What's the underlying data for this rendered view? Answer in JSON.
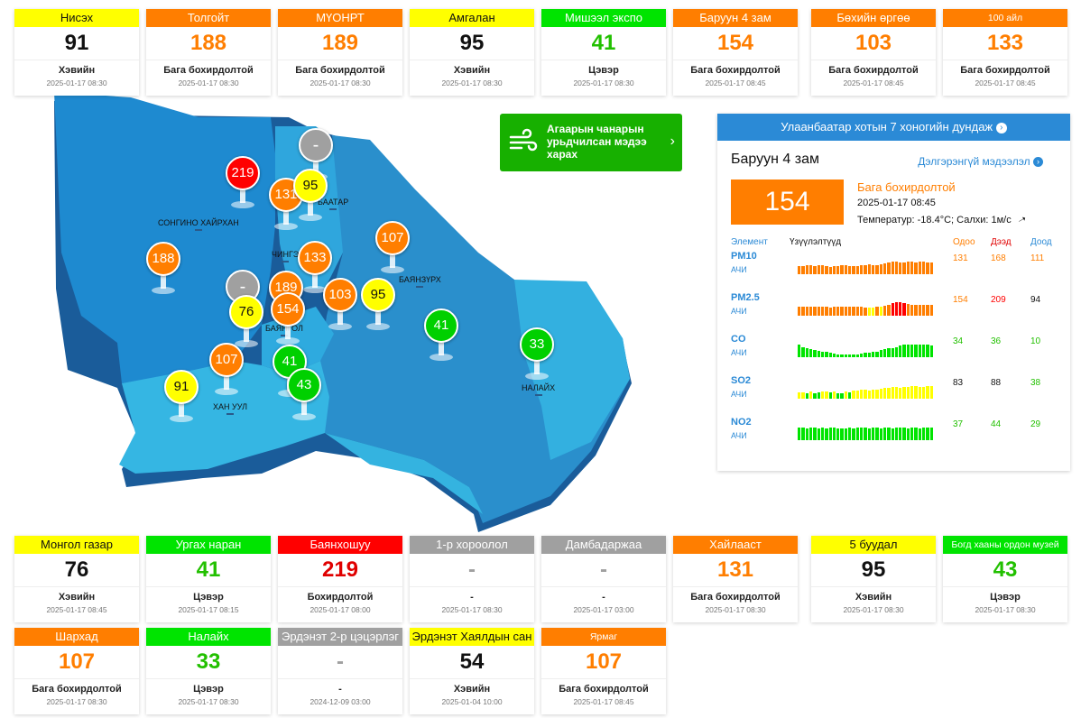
{
  "colors": {
    "good": "#00e400",
    "moderate": "#ffff00",
    "usg": "#ff7e00",
    "unhealthy": "#ff0000",
    "nodata": "#a0a0a0",
    "accent": "#2b8ad6"
  },
  "top_cards": [
    {
      "name": "Нисэх",
      "value": "91",
      "status": "Хэвийн",
      "time": "2025-01-17 08:30",
      "level": "yellow"
    },
    {
      "name": "Толгойт",
      "value": "188",
      "status": "Бага бохирдолтой",
      "time": "2025-01-17 08:30",
      "level": "orange"
    },
    {
      "name": "МҮОНРТ",
      "value": "189",
      "status": "Бага бохирдолтой",
      "time": "2025-01-17 08:30",
      "level": "orange"
    },
    {
      "name": "Амгалан",
      "value": "95",
      "status": "Хэвийн",
      "time": "2025-01-17 08:30",
      "level": "yellow"
    },
    {
      "name": "Мишээл экспо",
      "value": "41",
      "status": "Цэвэр",
      "time": "2025-01-17 08:30",
      "level": "green"
    },
    {
      "name": "Баруун 4 зам",
      "value": "154",
      "status": "Бага бохирдолтой",
      "time": "2025-01-17 08:45",
      "level": "orange"
    },
    {
      "name": "Бөхийн өргөө",
      "value": "103",
      "status": "Бага бохирдолтой",
      "time": "2025-01-17 08:45",
      "level": "orange"
    },
    {
      "name": "100 айл",
      "value": "133",
      "status": "Бага бохирдолтой",
      "time": "2025-01-17 08:45",
      "level": "orange",
      "small": true
    }
  ],
  "bottom_cards_row1": [
    {
      "name": "Монгол газар",
      "value": "76",
      "status": "Хэвийн",
      "time": "2025-01-17 08:45",
      "level": "yellow"
    },
    {
      "name": "Ургах наран",
      "value": "41",
      "status": "Цэвэр",
      "time": "2025-01-17 08:15",
      "level": "green"
    },
    {
      "name": "Баянхошуу",
      "value": "219",
      "status": "Бохирдолтой",
      "time": "2025-01-17 08:00",
      "level": "red"
    },
    {
      "name": "1-р хороолол",
      "value": "-",
      "status": "-",
      "time": "2025-01-17 08:30",
      "level": "gray"
    },
    {
      "name": "Дамбадаржаа",
      "value": "-",
      "status": "-",
      "time": "2025-01-17 03:00",
      "level": "gray"
    },
    {
      "name": "Хайлааст",
      "value": "131",
      "status": "Бага бохирдолтой",
      "time": "2025-01-17 08:30",
      "level": "orange"
    },
    {
      "name": "5 буудал",
      "value": "95",
      "status": "Хэвийн",
      "time": "2025-01-17 08:30",
      "level": "yellow"
    },
    {
      "name": "Богд хааны ордон музей",
      "value": "43",
      "status": "Цэвэр",
      "time": "2025-01-17 08:30",
      "level": "green",
      "small": true
    }
  ],
  "bottom_cards_row2": [
    {
      "name": "Шархад",
      "value": "107",
      "status": "Бага бохирдолтой",
      "time": "2025-01-17 08:30",
      "level": "orange"
    },
    {
      "name": "Налайх",
      "value": "33",
      "status": "Цэвэр",
      "time": "2025-01-17 08:30",
      "level": "green"
    },
    {
      "name": "Эрдэнэт 2-р цэцэрлэг",
      "value": "-",
      "status": "-",
      "time": "2024-12-09 03:00",
      "level": "gray"
    },
    {
      "name": "Эрдэнэт Хаялдын сан",
      "value": "54",
      "status": "Хэвийн",
      "time": "2025-01-04 10:00",
      "level": "yellow"
    },
    {
      "name": "Ярмаг",
      "value": "107",
      "status": "Бага бохирдолтой",
      "time": "2025-01-17 08:45",
      "level": "orange",
      "small": true
    }
  ],
  "map": {
    "district_labels": [
      "СОНГИНО ХАЙРХАН",
      "БААТАР",
      "ЧИНГЭ",
      "БАЯНЗҮРХ",
      "БАЯНГОЛ",
      "ХАН УУЛ",
      "НАЛАЙХ"
    ],
    "pins": [
      {
        "value": "-",
        "level": "gray"
      },
      {
        "value": "219",
        "level": "red"
      },
      {
        "value": "131",
        "level": "orange"
      },
      {
        "value": "95",
        "level": "yellow"
      },
      {
        "value": "188",
        "level": "orange"
      },
      {
        "value": "107",
        "level": "orange"
      },
      {
        "value": "133",
        "level": "orange"
      },
      {
        "value": "-",
        "level": "gray"
      },
      {
        "value": "189",
        "level": "orange"
      },
      {
        "value": "103",
        "level": "orange"
      },
      {
        "value": "95",
        "level": "yellow"
      },
      {
        "value": "76",
        "level": "yellow"
      },
      {
        "value": "154",
        "level": "orange"
      },
      {
        "value": "41",
        "level": "green"
      },
      {
        "value": "107",
        "level": "orange"
      },
      {
        "value": "41",
        "level": "green"
      },
      {
        "value": "43",
        "level": "green"
      },
      {
        "value": "91",
        "level": "yellow"
      },
      {
        "value": "33",
        "level": "green"
      }
    ]
  },
  "forecast_button": {
    "label": "Агаарын чанарын урьдчилсан мэдээ харах"
  },
  "panel": {
    "title": "Улаанбаатар хотын 7 хоногийн дундаж",
    "station": "Баруун 4 зам",
    "details_link": "Дэлгэрэнгүй мэдээлэл",
    "aqi": "154",
    "status": "Бага бохирдолтой",
    "time": "2025-01-17 08:45",
    "weather": "Температур: -18.4°C; Салхи: 1м/с",
    "headers": {
      "element": "Элемент",
      "indicators": "Үзүүлэлтүүд",
      "current": "Одоо",
      "max": "Дээд",
      "min": "Доод"
    },
    "pollutants": [
      {
        "name": "PM10",
        "unit": "АЧИ",
        "current": "131",
        "max": "168",
        "min": "111",
        "current_color": "#ff7e00",
        "max_color": "#ff7e00",
        "min_color": "#ff7e00",
        "bars": [
          "o",
          "o",
          "o",
          "o",
          "o",
          "o",
          "o",
          "o",
          "o",
          "o",
          "o",
          "o",
          "o",
          "o",
          "o",
          "o",
          "o",
          "o",
          "o",
          "o",
          "o",
          "o",
          "o",
          "o",
          "o",
          "o",
          "o",
          "o",
          "o",
          "o",
          "o",
          "o",
          "o",
          "o",
          "o"
        ],
        "heights": [
          0.55,
          0.55,
          0.6,
          0.6,
          0.55,
          0.6,
          0.6,
          0.55,
          0.5,
          0.55,
          0.55,
          0.6,
          0.6,
          0.55,
          0.55,
          0.55,
          0.6,
          0.65,
          0.7,
          0.65,
          0.6,
          0.7,
          0.75,
          0.8,
          0.85,
          0.85,
          0.8,
          0.8,
          0.85,
          0.85,
          0.8,
          0.85,
          0.85,
          0.8,
          0.8
        ]
      },
      {
        "name": "PM2.5",
        "unit": "АЧИ",
        "current": "154",
        "max": "209",
        "min": "94",
        "current_color": "#ff7e00",
        "max_color": "#ff0000",
        "min_color": "#111111",
        "bars": [
          "o",
          "o",
          "o",
          "o",
          "o",
          "o",
          "o",
          "o",
          "o",
          "o",
          "o",
          "o",
          "o",
          "o",
          "o",
          "o",
          "o",
          "o",
          "y",
          "y",
          "o",
          "y",
          "o",
          "o",
          "r",
          "r",
          "r",
          "r",
          "o",
          "o",
          "o",
          "o",
          "o",
          "o",
          "o"
        ],
        "heights": [
          0.6,
          0.65,
          0.6,
          0.6,
          0.65,
          0.65,
          0.6,
          0.6,
          0.55,
          0.6,
          0.6,
          0.6,
          0.6,
          0.6,
          0.6,
          0.6,
          0.6,
          0.55,
          0.55,
          0.55,
          0.6,
          0.6,
          0.7,
          0.75,
          0.85,
          0.95,
          0.95,
          0.9,
          0.8,
          0.75,
          0.75,
          0.75,
          0.75,
          0.75,
          0.75
        ]
      },
      {
        "name": "CO",
        "unit": "АЧИ",
        "current": "34",
        "max": "36",
        "min": "10",
        "current_color": "#22c000",
        "max_color": "#22c000",
        "min_color": "#22c000",
        "bars": [
          "g",
          "g",
          "g",
          "g",
          "g",
          "g",
          "g",
          "g",
          "g",
          "g",
          "g",
          "g",
          "g",
          "g",
          "g",
          "g",
          "g",
          "g",
          "g",
          "g",
          "g",
          "g",
          "g",
          "g",
          "g",
          "g",
          "g",
          "g",
          "g",
          "g",
          "g",
          "g",
          "g",
          "g",
          "g"
        ],
        "heights": [
          0.85,
          0.7,
          0.6,
          0.55,
          0.5,
          0.45,
          0.4,
          0.35,
          0.3,
          0.25,
          0.2,
          0.2,
          0.2,
          0.2,
          0.2,
          0.2,
          0.25,
          0.3,
          0.3,
          0.35,
          0.4,
          0.5,
          0.55,
          0.6,
          0.65,
          0.7,
          0.8,
          0.85,
          0.85,
          0.9,
          0.85,
          0.9,
          0.85,
          0.85,
          0.8
        ]
      },
      {
        "name": "SO2",
        "unit": "АЧИ",
        "current": "83",
        "max": "88",
        "min": "38",
        "current_color": "#111111",
        "max_color": "#111111",
        "min_color": "#22c000",
        "bars": [
          "y",
          "y",
          "g",
          "y",
          "g",
          "g",
          "y",
          "y",
          "g",
          "y",
          "g",
          "g",
          "y",
          "g",
          "y",
          "y",
          "y",
          "y",
          "y",
          "y",
          "y",
          "y",
          "y",
          "y",
          "y",
          "y",
          "y",
          "y",
          "y",
          "y",
          "y",
          "y",
          "y",
          "y",
          "y"
        ],
        "heights": [
          0.45,
          0.45,
          0.4,
          0.5,
          0.4,
          0.45,
          0.5,
          0.5,
          0.45,
          0.5,
          0.4,
          0.4,
          0.5,
          0.45,
          0.55,
          0.55,
          0.6,
          0.6,
          0.55,
          0.6,
          0.6,
          0.7,
          0.75,
          0.75,
          0.8,
          0.8,
          0.75,
          0.8,
          0.8,
          0.85,
          0.85,
          0.8,
          0.8,
          0.85,
          0.85
        ]
      },
      {
        "name": "NO2",
        "unit": "АЧИ",
        "current": "37",
        "max": "44",
        "min": "29",
        "current_color": "#22c000",
        "max_color": "#22c000",
        "min_color": "#22c000",
        "bars": [
          "g",
          "g",
          "g",
          "g",
          "g",
          "g",
          "g",
          "g",
          "g",
          "g",
          "g",
          "g",
          "g",
          "g",
          "g",
          "g",
          "g",
          "g",
          "g",
          "g",
          "g",
          "g",
          "g",
          "g",
          "g",
          "g",
          "g",
          "g",
          "g",
          "g",
          "g",
          "g",
          "g",
          "g",
          "g"
        ],
        "heights": [
          0.85,
          0.85,
          0.8,
          0.85,
          0.85,
          0.8,
          0.85,
          0.8,
          0.85,
          0.85,
          0.8,
          0.8,
          0.8,
          0.85,
          0.8,
          0.85,
          0.85,
          0.85,
          0.8,
          0.85,
          0.85,
          0.8,
          0.85,
          0.85,
          0.8,
          0.85,
          0.85,
          0.85,
          0.8,
          0.85,
          0.85,
          0.8,
          0.85,
          0.85,
          0.85
        ]
      }
    ]
  }
}
